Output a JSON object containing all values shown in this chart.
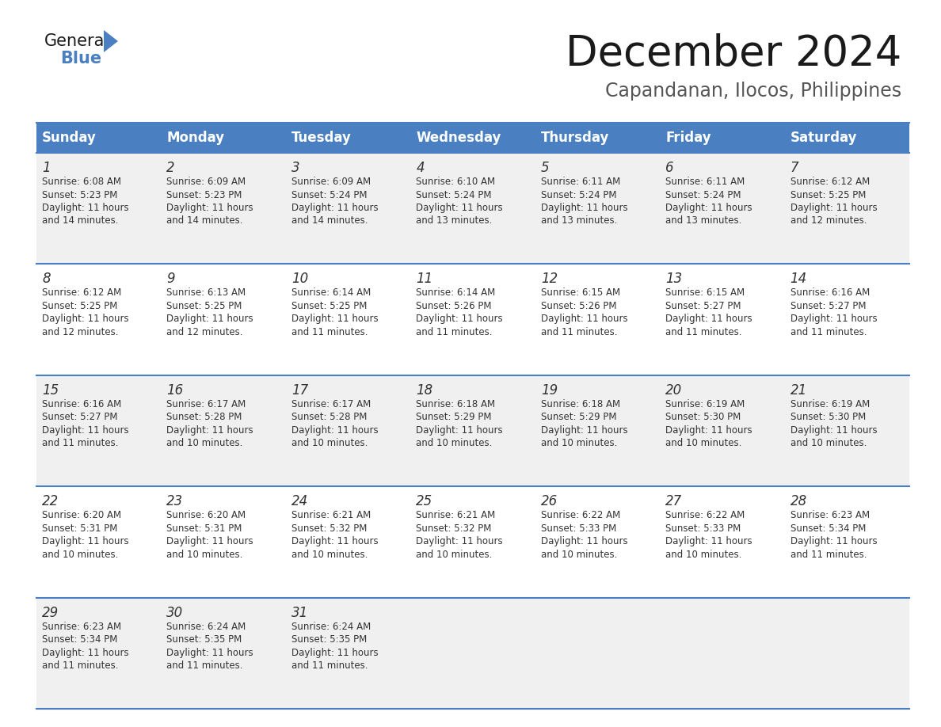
{
  "title": "December 2024",
  "subtitle": "Capandanan, Ilocos, Philippines",
  "days_of_week": [
    "Sunday",
    "Monday",
    "Tuesday",
    "Wednesday",
    "Thursday",
    "Friday",
    "Saturday"
  ],
  "header_bg": "#4a7fc1",
  "header_text": "#FFFFFF",
  "row_bg_odd": "#f0f0f0",
  "row_bg_even": "#FFFFFF",
  "cell_border": "#4a7fc1",
  "day_number_color": "#333333",
  "text_color": "#333333",
  "calendar_data": [
    [
      {
        "day": 1,
        "sunrise": "6:08 AM",
        "sunset": "5:23 PM",
        "daylight": "11 hours and 14 minutes"
      },
      {
        "day": 2,
        "sunrise": "6:09 AM",
        "sunset": "5:23 PM",
        "daylight": "11 hours and 14 minutes"
      },
      {
        "day": 3,
        "sunrise": "6:09 AM",
        "sunset": "5:24 PM",
        "daylight": "11 hours and 14 minutes"
      },
      {
        "day": 4,
        "sunrise": "6:10 AM",
        "sunset": "5:24 PM",
        "daylight": "11 hours and 13 minutes"
      },
      {
        "day": 5,
        "sunrise": "6:11 AM",
        "sunset": "5:24 PM",
        "daylight": "11 hours and 13 minutes"
      },
      {
        "day": 6,
        "sunrise": "6:11 AM",
        "sunset": "5:24 PM",
        "daylight": "11 hours and 13 minutes"
      },
      {
        "day": 7,
        "sunrise": "6:12 AM",
        "sunset": "5:25 PM",
        "daylight": "11 hours and 12 minutes"
      }
    ],
    [
      {
        "day": 8,
        "sunrise": "6:12 AM",
        "sunset": "5:25 PM",
        "daylight": "11 hours and 12 minutes"
      },
      {
        "day": 9,
        "sunrise": "6:13 AM",
        "sunset": "5:25 PM",
        "daylight": "11 hours and 12 minutes"
      },
      {
        "day": 10,
        "sunrise": "6:14 AM",
        "sunset": "5:25 PM",
        "daylight": "11 hours and 11 minutes"
      },
      {
        "day": 11,
        "sunrise": "6:14 AM",
        "sunset": "5:26 PM",
        "daylight": "11 hours and 11 minutes"
      },
      {
        "day": 12,
        "sunrise": "6:15 AM",
        "sunset": "5:26 PM",
        "daylight": "11 hours and 11 minutes"
      },
      {
        "day": 13,
        "sunrise": "6:15 AM",
        "sunset": "5:27 PM",
        "daylight": "11 hours and 11 minutes"
      },
      {
        "day": 14,
        "sunrise": "6:16 AM",
        "sunset": "5:27 PM",
        "daylight": "11 hours and 11 minutes"
      }
    ],
    [
      {
        "day": 15,
        "sunrise": "6:16 AM",
        "sunset": "5:27 PM",
        "daylight": "11 hours and 11 minutes"
      },
      {
        "day": 16,
        "sunrise": "6:17 AM",
        "sunset": "5:28 PM",
        "daylight": "11 hours and 10 minutes"
      },
      {
        "day": 17,
        "sunrise": "6:17 AM",
        "sunset": "5:28 PM",
        "daylight": "11 hours and 10 minutes"
      },
      {
        "day": 18,
        "sunrise": "6:18 AM",
        "sunset": "5:29 PM",
        "daylight": "11 hours and 10 minutes"
      },
      {
        "day": 19,
        "sunrise": "6:18 AM",
        "sunset": "5:29 PM",
        "daylight": "11 hours and 10 minutes"
      },
      {
        "day": 20,
        "sunrise": "6:19 AM",
        "sunset": "5:30 PM",
        "daylight": "11 hours and 10 minutes"
      },
      {
        "day": 21,
        "sunrise": "6:19 AM",
        "sunset": "5:30 PM",
        "daylight": "11 hours and 10 minutes"
      }
    ],
    [
      {
        "day": 22,
        "sunrise": "6:20 AM",
        "sunset": "5:31 PM",
        "daylight": "11 hours and 10 minutes"
      },
      {
        "day": 23,
        "sunrise": "6:20 AM",
        "sunset": "5:31 PM",
        "daylight": "11 hours and 10 minutes"
      },
      {
        "day": 24,
        "sunrise": "6:21 AM",
        "sunset": "5:32 PM",
        "daylight": "11 hours and 10 minutes"
      },
      {
        "day": 25,
        "sunrise": "6:21 AM",
        "sunset": "5:32 PM",
        "daylight": "11 hours and 10 minutes"
      },
      {
        "day": 26,
        "sunrise": "6:22 AM",
        "sunset": "5:33 PM",
        "daylight": "11 hours and 10 minutes"
      },
      {
        "day": 27,
        "sunrise": "6:22 AM",
        "sunset": "5:33 PM",
        "daylight": "11 hours and 10 minutes"
      },
      {
        "day": 28,
        "sunrise": "6:23 AM",
        "sunset": "5:34 PM",
        "daylight": "11 hours and 11 minutes"
      }
    ],
    [
      {
        "day": 29,
        "sunrise": "6:23 AM",
        "sunset": "5:34 PM",
        "daylight": "11 hours and 11 minutes"
      },
      {
        "day": 30,
        "sunrise": "6:24 AM",
        "sunset": "5:35 PM",
        "daylight": "11 hours and 11 minutes"
      },
      {
        "day": 31,
        "sunrise": "6:24 AM",
        "sunset": "5:35 PM",
        "daylight": "11 hours and 11 minutes"
      },
      null,
      null,
      null,
      null
    ]
  ],
  "logo_color_general": "#1a1a1a",
  "logo_color_blue": "#4a7fc1",
  "title_fontsize": 38,
  "subtitle_fontsize": 17,
  "header_fontsize": 12,
  "day_num_fontsize": 12,
  "cell_text_fontsize": 8.5
}
